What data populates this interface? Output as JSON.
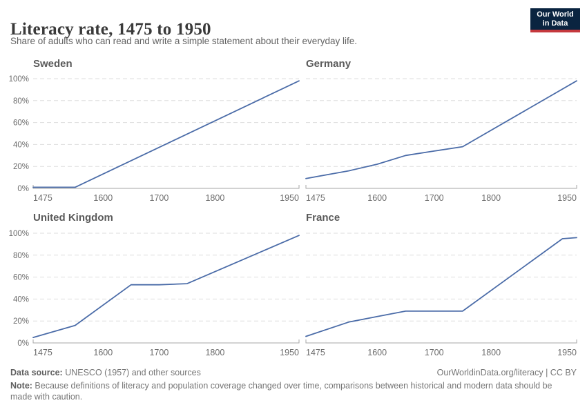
{
  "header": {
    "title": "Literacy rate, 1475 to 1950",
    "subtitle": "Share of adults who can read and write a simple statement about their everyday life."
  },
  "logo": {
    "line1": "Our World",
    "line2": "in Data",
    "bg_color": "#0A2440",
    "stripe_color": "#C5383D"
  },
  "chart_data": {
    "type": "line",
    "title": "Literacy rate, 1475 to 1950",
    "xlim": [
      1475,
      1950
    ],
    "ylim": [
      0,
      100
    ],
    "x_ticks": [
      1475,
      1600,
      1700,
      1800,
      1950
    ],
    "y_ticks": [
      0,
      20,
      40,
      60,
      80,
      100
    ],
    "y_tick_suffix": "%",
    "grid": "horizontal dashed, y-labels only on left column",
    "line_color": "#4B6CA8",
    "grid_color": "#dddddd",
    "axis_color": "#a6a6a6",
    "tick_color": "#6b6b6b",
    "charts": [
      {
        "country": "Sweden",
        "x": [
          1475,
          1550,
          1950
        ],
        "y": [
          1,
          1,
          98
        ]
      },
      {
        "country": "Germany",
        "x": [
          1475,
          1550,
          1600,
          1650,
          1700,
          1750,
          1950
        ],
        "y": [
          9,
          16,
          22,
          30,
          34,
          38,
          98
        ]
      },
      {
        "country": "United Kingdom",
        "x": [
          1475,
          1550,
          1650,
          1700,
          1750,
          1950
        ],
        "y": [
          5,
          16,
          53,
          53,
          54,
          98
        ]
      },
      {
        "country": "France",
        "x": [
          1475,
          1550,
          1600,
          1650,
          1700,
          1750,
          1925,
          1950
        ],
        "y": [
          6,
          19,
          24,
          29,
          29,
          29,
          95,
          96
        ]
      }
    ]
  },
  "footer": {
    "datasource_label": "Data source:",
    "datasource_text": " UNESCO (1957) and other sources",
    "credit": "OurWorldinData.org/literacy | CC BY",
    "note_label": "Note:",
    "note_text": " Because definitions of literacy and population coverage changed over time, comparisons between historical and modern data should be made with caution."
  }
}
